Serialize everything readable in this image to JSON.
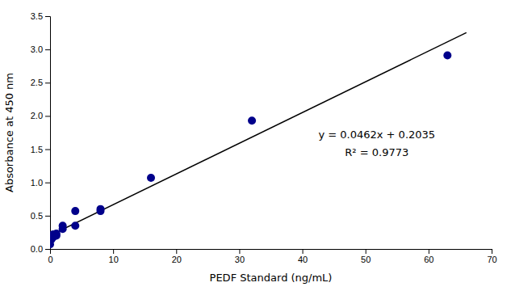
{
  "chart_data": {
    "type": "scatter",
    "x_label": "PEDF Standard (ng/mL)",
    "y_label": "Absorbance at 450 nm",
    "xlim": [
      0,
      70
    ],
    "ylim": [
      0,
      3.5
    ],
    "xticks": [
      0,
      10,
      20,
      30,
      40,
      50,
      60,
      70
    ],
    "yticks": [
      {
        "value": 0,
        "label": "0.0"
      },
      0.5,
      {
        "value": 1,
        "label": "1.0"
      },
      1.5,
      {
        "value": 2,
        "label": "2.0"
      },
      2.5,
      {
        "value": 3,
        "label": "3.0"
      },
      3.5
    ],
    "grid": false,
    "series": [
      {
        "type": "scatter",
        "color": "#00008B",
        "x": [
          0.0,
          0.25,
          0.5,
          0.5,
          1.0,
          1.0,
          2.0,
          2.0,
          4.0,
          4.0,
          8.0,
          8.0,
          16.0,
          32.0,
          63.0
        ],
        "values": [
          0.07,
          0.15,
          0.18,
          0.22,
          0.2,
          0.23,
          0.3,
          0.35,
          0.35,
          0.57,
          0.57,
          0.6,
          1.07,
          1.93,
          2.91
        ]
      },
      {
        "type": "line",
        "color": "#000000",
        "x": [
          0,
          66
        ],
        "values": [
          0.2035,
          3.2527
        ]
      }
    ],
    "annotations": [
      "y = 0.0462x + 0.2035",
      "R² = 0.9773"
    ]
  }
}
